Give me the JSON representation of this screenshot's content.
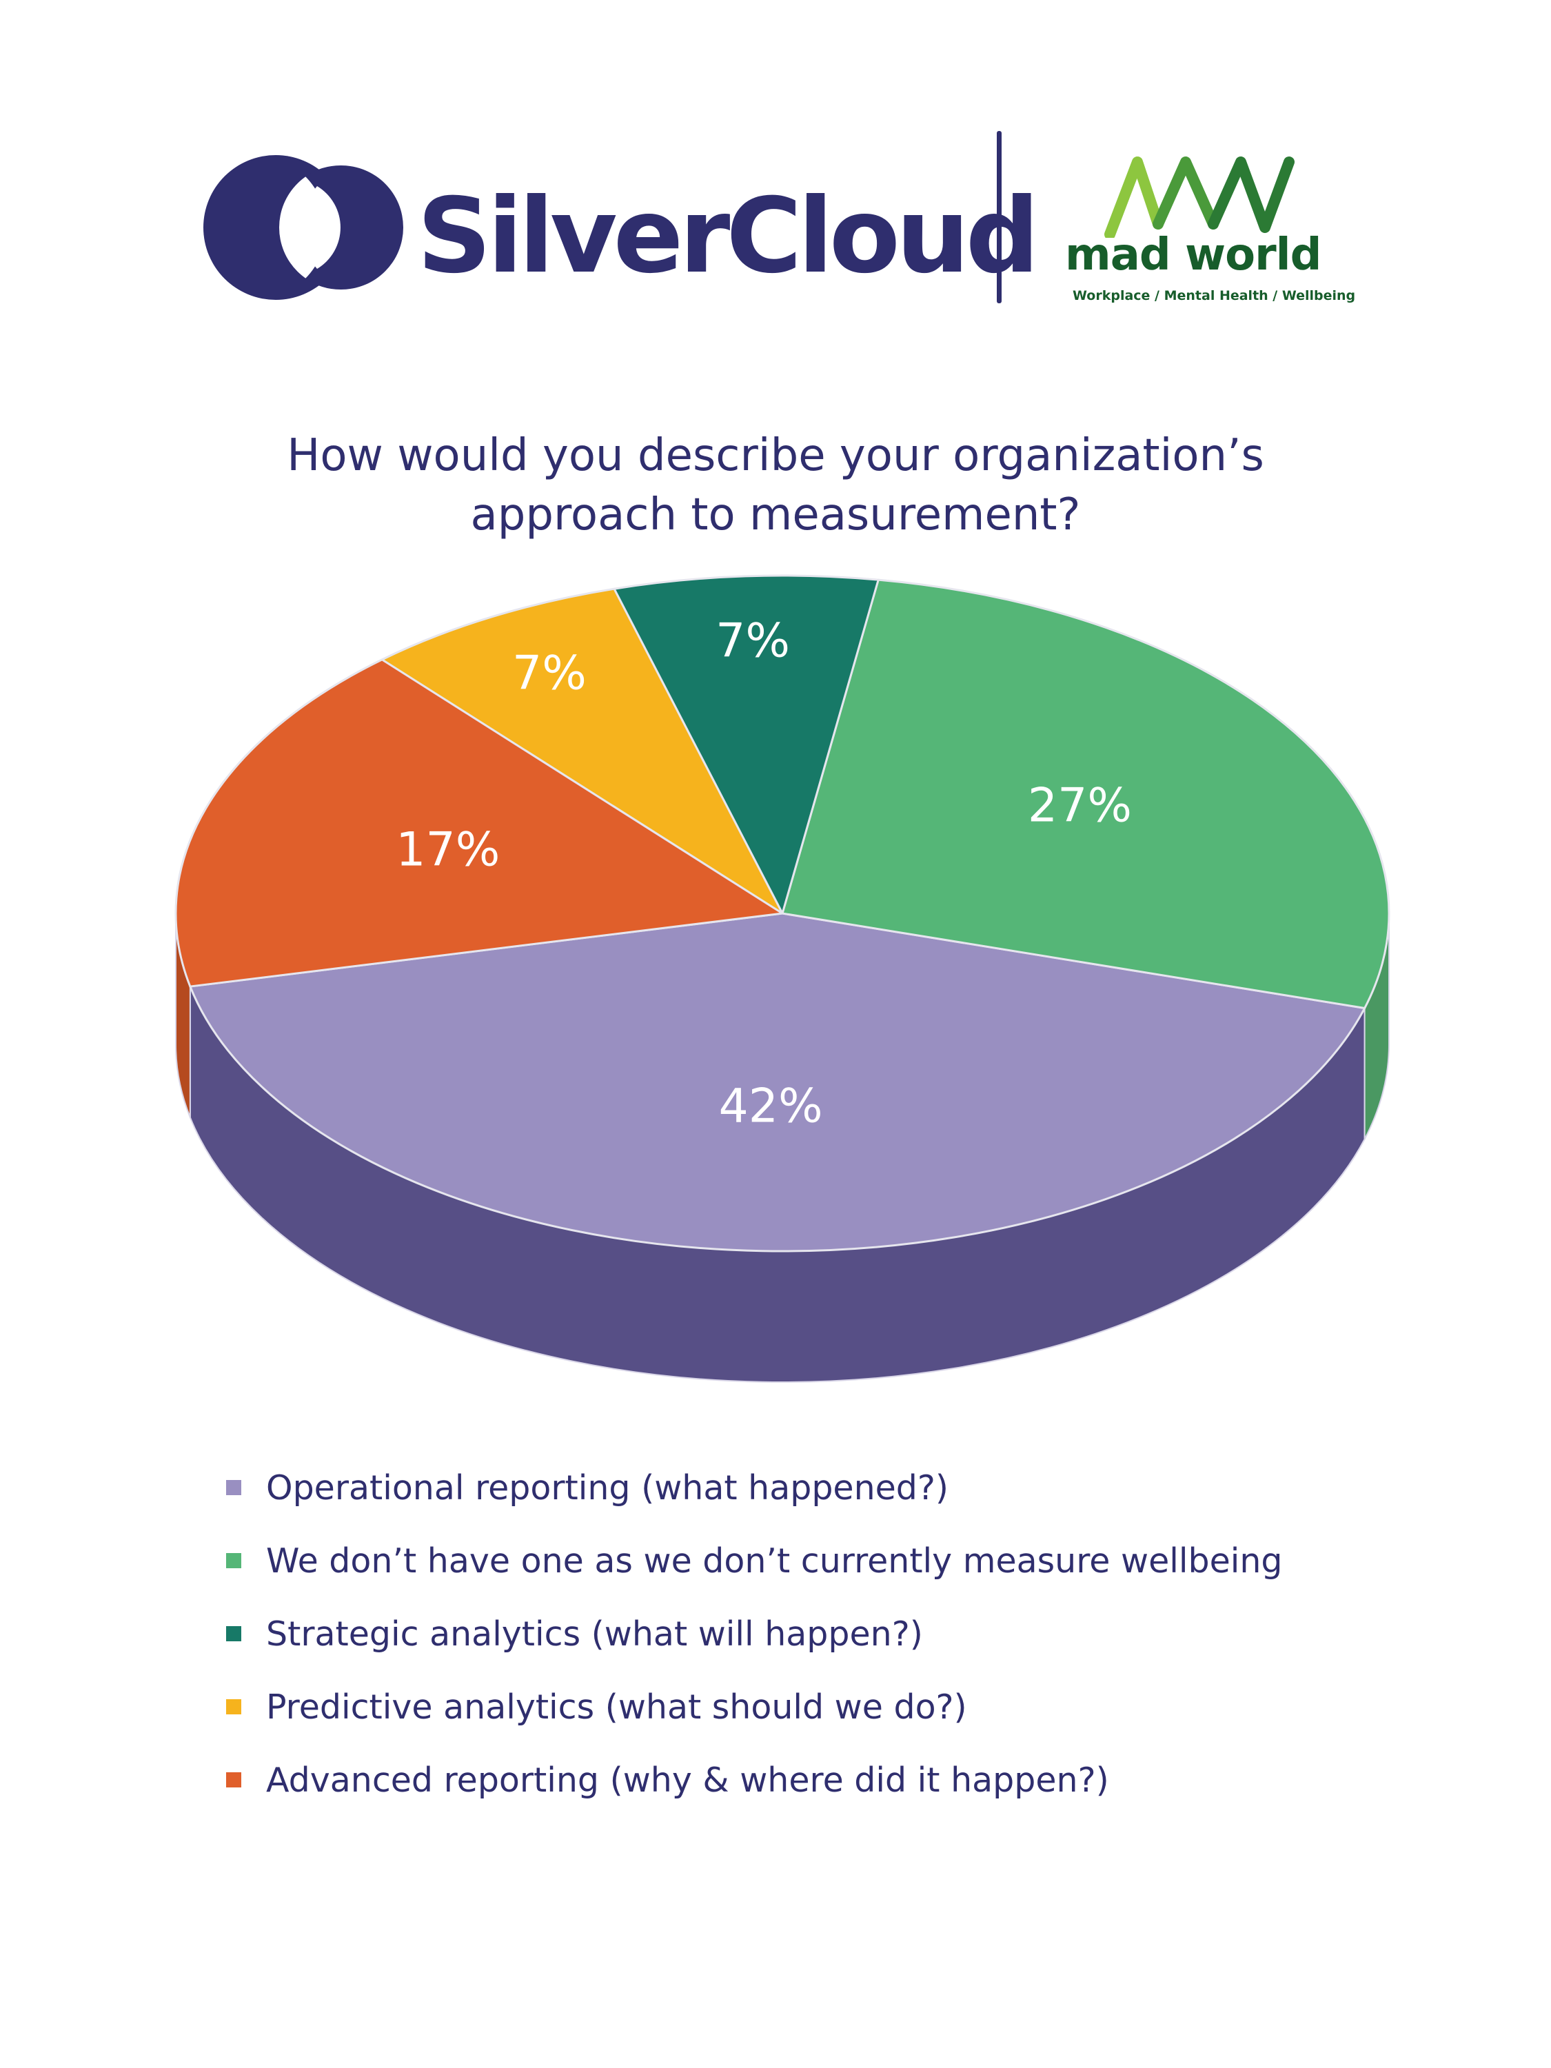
{
  "header": {
    "silvercloud_wordmark": "SilverCloud",
    "madworld_wordmark": "mad world",
    "madworld_tagline": "Workplace / Mental Health / Wellbeing",
    "brand_color": "#2f2e6e",
    "madworld_color": "#175d2b"
  },
  "chart_data": {
    "type": "pie",
    "title_lines": [
      "How would you describe your organization’s",
      "approach to measurement?"
    ],
    "legend_placement": "bottom",
    "slices": [
      {
        "label": "Operational reporting (what happened?)",
        "value": 42,
        "display": "42%",
        "color": "#998fc1",
        "side_color": "#574f86",
        "legend_color": "#998fc1"
      },
      {
        "label": "We don’t have one as we don’t currently measure wellbeing",
        "value": 27,
        "display": "27%",
        "color": "#55b677",
        "side_color": "#4a9862",
        "legend_color": "#55b677"
      },
      {
        "label": "Strategic analytics (what will happen?)",
        "value": 7,
        "display": "7%",
        "color": "#177967",
        "side_color": "#126254",
        "legend_color": "#177967"
      },
      {
        "label": "Predictive analytics (what should we do?)",
        "value": 7,
        "display": "7%",
        "color": "#f6b31d",
        "side_color": "#c98f14",
        "legend_color": "#f6b31d"
      },
      {
        "label": "Advanced reporting (why & where did it happen?)",
        "value": 17,
        "display": "17%",
        "color": "#e05f2b",
        "side_color": "#b54a1f",
        "legend_color": "#e05f2b"
      }
    ]
  }
}
